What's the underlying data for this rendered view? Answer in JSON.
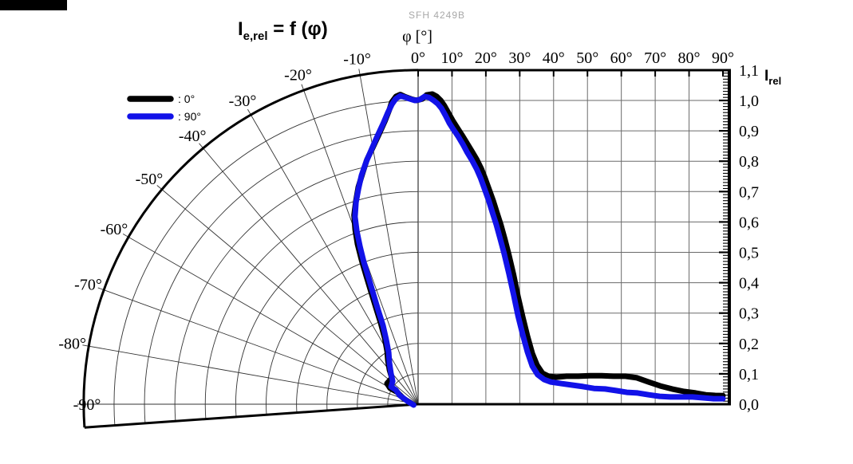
{
  "colors": {
    "curve_0deg": "#000000",
    "curve_90deg": "#1212e8",
    "grid_cartesian": "#6a6a6a",
    "grid_polar": "#333333",
    "axis": "#000000",
    "watermark": "#a8a8a8"
  },
  "chart_data": {
    "type": "line",
    "variant": "combined polar-cartesian LED radiation pattern (relative radiant intensity vs angle)",
    "title_parts": {
      "main": "I",
      "sub": "e,rel",
      "rest": " = f (φ)"
    },
    "watermark": "SFH 4249B",
    "x_axis": {
      "label": "φ [°]",
      "cartesian_tick_labels": [
        "0°",
        "10°",
        "20°",
        "30°",
        "40°",
        "50°",
        "60°",
        "70°",
        "80°",
        "90°"
      ],
      "cartesian_tick_values": [
        0,
        10,
        20,
        30,
        40,
        50,
        60,
        70,
        80,
        90
      ],
      "polar_tick_labels": [
        "-10°",
        "-20°",
        "-30°",
        "-40°",
        "-50°",
        "-60°",
        "-70°",
        "-80°",
        "-90°"
      ],
      "polar_tick_values": [
        -10,
        -20,
        -30,
        -40,
        -50,
        -60,
        -70,
        -80,
        -90
      ],
      "range_deg": [
        -94,
        90
      ]
    },
    "y_axis": {
      "label_main": "I",
      "label_sub": "rel",
      "tick_labels": [
        "1,1",
        "1,0",
        "0,9",
        "0,8",
        "0,7",
        "0,6",
        "0,5",
        "0,4",
        "0,3",
        "0,2",
        "0,1",
        "0,0"
      ],
      "tick_values": [
        1.1,
        1.0,
        0.9,
        0.8,
        0.7,
        0.6,
        0.5,
        0.4,
        0.3,
        0.2,
        0.1,
        0.0
      ],
      "range": [
        0,
        1.1
      ],
      "minor_tick_step": 0.01
    },
    "legend": [
      {
        "label": ": 0°",
        "series": "0°",
        "color": "#000000"
      },
      {
        "label": ": 90°",
        "series": "90°",
        "color": "#1212e8"
      }
    ],
    "layout": {
      "grid": true,
      "polar_fan_deg": [
        -94,
        0
      ],
      "legend_position": "upper-left"
    },
    "series": [
      {
        "name": "0°",
        "color": "#000000",
        "points": [
          [
            -69,
            0.051
          ],
          [
            -60,
            0.079
          ],
          [
            -60.3,
            0.106
          ],
          [
            -56.3,
            0.123
          ],
          [
            -45,
            0.122
          ],
          [
            -39.9,
            0.147
          ],
          [
            -34.6,
            0.175
          ],
          [
            -30.2,
            0.203
          ],
          [
            -26.8,
            0.244
          ],
          [
            -24.7,
            0.295
          ],
          [
            -23.6,
            0.347
          ],
          [
            -22.7,
            0.401
          ],
          [
            -22,
            0.456
          ],
          [
            -21.4,
            0.51
          ],
          [
            -20.7,
            0.564
          ],
          [
            -19.8,
            0.611
          ],
          [
            -18.7,
            0.657
          ],
          [
            -17,
            0.7
          ],
          [
            -15.4,
            0.741
          ],
          [
            -13.6,
            0.78
          ],
          [
            -11.8,
            0.823
          ],
          [
            -10,
            0.858
          ],
          [
            -8.2,
            0.899
          ],
          [
            -6.7,
            0.938
          ],
          [
            -5.6,
            0.973
          ],
          [
            -5,
            0.998
          ],
          [
            -4.1,
            1.016
          ],
          [
            -3.3,
            1.021
          ],
          [
            -2.4,
            1.013
          ],
          [
            -1.3,
            1.005
          ],
          [
            -0.3,
            1.0
          ],
          [
            1.2,
            1.005
          ],
          [
            2.5,
            1.018
          ],
          [
            4.2,
            1.021
          ],
          [
            5.5,
            1.013
          ],
          [
            6.7,
            1.0
          ],
          [
            7.8,
            0.982
          ],
          [
            9,
            0.958
          ],
          [
            10.2,
            0.934
          ],
          [
            11.5,
            0.911
          ],
          [
            12.9,
            0.887
          ],
          [
            14.5,
            0.858
          ],
          [
            15.9,
            0.832
          ],
          [
            17.3,
            0.806
          ],
          [
            18.7,
            0.774
          ],
          [
            19.8,
            0.743
          ],
          [
            21,
            0.706
          ],
          [
            22.2,
            0.669
          ],
          [
            23.3,
            0.63
          ],
          [
            24.5,
            0.588
          ],
          [
            25.6,
            0.543
          ],
          [
            26.8,
            0.491
          ],
          [
            28.2,
            0.425
          ],
          [
            29.5,
            0.354
          ],
          [
            30.9,
            0.286
          ],
          [
            32.3,
            0.223
          ],
          [
            33.7,
            0.168
          ],
          [
            35.1,
            0.129
          ],
          [
            36.7,
            0.102
          ],
          [
            38.5,
            0.092
          ],
          [
            40.8,
            0.089
          ],
          [
            43.8,
            0.092
          ],
          [
            47.3,
            0.092
          ],
          [
            50.8,
            0.094
          ],
          [
            54.2,
            0.094
          ],
          [
            57.7,
            0.092
          ],
          [
            61.2,
            0.092
          ],
          [
            64.6,
            0.087
          ],
          [
            68.1,
            0.073
          ],
          [
            71.5,
            0.06
          ],
          [
            75,
            0.05
          ],
          [
            78.5,
            0.042
          ],
          [
            81.9,
            0.037
          ],
          [
            84.9,
            0.031
          ],
          [
            87.7,
            0.029
          ],
          [
            90,
            0.028
          ]
        ]
      },
      {
        "name": "90°",
        "color": "#1212e8",
        "points": [
          [
            -100,
            0.015
          ],
          [
            -75,
            0.035
          ],
          [
            -64.4,
            0.067
          ],
          [
            -57.3,
            0.087
          ],
          [
            -57.1,
            0.106
          ],
          [
            -47.8,
            0.113
          ],
          [
            -41.1,
            0.136
          ],
          [
            -34.7,
            0.166
          ],
          [
            -29.6,
            0.196
          ],
          [
            -26.3,
            0.237
          ],
          [
            -24,
            0.284
          ],
          [
            -23,
            0.336
          ],
          [
            -22.1,
            0.391
          ],
          [
            -21.4,
            0.445
          ],
          [
            -20.9,
            0.5
          ],
          [
            -20.2,
            0.554
          ],
          [
            -19.5,
            0.604
          ],
          [
            -18.6,
            0.651
          ],
          [
            -17.1,
            0.695
          ],
          [
            -15.5,
            0.735
          ],
          [
            -13.9,
            0.776
          ],
          [
            -12,
            0.818
          ],
          [
            -10.2,
            0.856
          ],
          [
            -8.6,
            0.894
          ],
          [
            -7.1,
            0.931
          ],
          [
            -5.9,
            0.966
          ],
          [
            -5,
            0.991
          ],
          [
            -4.2,
            1.008
          ],
          [
            -3.3,
            1.017
          ],
          [
            -2.4,
            1.011
          ],
          [
            -1.5,
            1.005
          ],
          [
            -0.6,
            1.0
          ],
          [
            0.5,
            1.003
          ],
          [
            1.9,
            1.013
          ],
          [
            3.2,
            1.01
          ],
          [
            4.6,
            1.0
          ],
          [
            5.8,
            0.989
          ],
          [
            6.9,
            0.974
          ],
          [
            8.1,
            0.95
          ],
          [
            9.2,
            0.926
          ],
          [
            10.4,
            0.905
          ],
          [
            11.8,
            0.882
          ],
          [
            13.2,
            0.856
          ],
          [
            14.5,
            0.829
          ],
          [
            15.9,
            0.803
          ],
          [
            17.3,
            0.774
          ],
          [
            18.5,
            0.743
          ],
          [
            19.6,
            0.709
          ],
          [
            20.8,
            0.672
          ],
          [
            21.9,
            0.632
          ],
          [
            23.1,
            0.591
          ],
          [
            24.2,
            0.546
          ],
          [
            25.4,
            0.496
          ],
          [
            26.8,
            0.43
          ],
          [
            28.2,
            0.36
          ],
          [
            29.5,
            0.291
          ],
          [
            30.9,
            0.228
          ],
          [
            32.3,
            0.171
          ],
          [
            33.7,
            0.126
          ],
          [
            35.3,
            0.097
          ],
          [
            37.2,
            0.081
          ],
          [
            39.2,
            0.073
          ],
          [
            42.2,
            0.068
          ],
          [
            45.5,
            0.063
          ],
          [
            48.7,
            0.058
          ],
          [
            51.9,
            0.052
          ],
          [
            55.2,
            0.05
          ],
          [
            58.4,
            0.045
          ],
          [
            61.6,
            0.039
          ],
          [
            64.8,
            0.037
          ],
          [
            68.1,
            0.031
          ],
          [
            71.3,
            0.026
          ],
          [
            74.5,
            0.024
          ],
          [
            77.8,
            0.024
          ],
          [
            81,
            0.024
          ],
          [
            84.2,
            0.021
          ],
          [
            87.2,
            0.018
          ],
          [
            90,
            0.018
          ]
        ]
      }
    ]
  }
}
